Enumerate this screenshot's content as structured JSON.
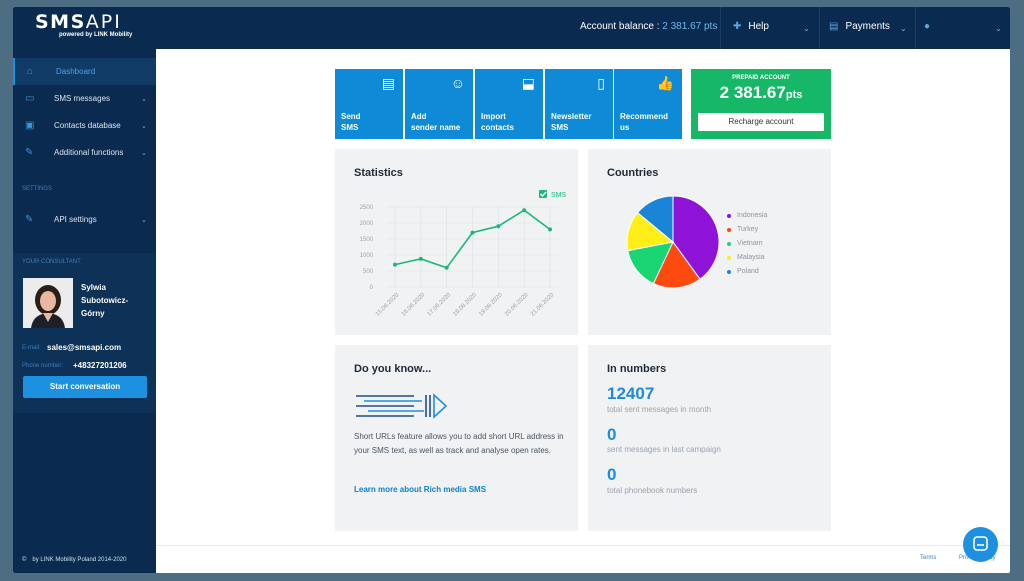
{
  "brand": {
    "logo_main": "SMS",
    "logo_api": "API",
    "logo_sub": "powered by LINK Mobility"
  },
  "topbar": {
    "balance_label": "Account balance : ",
    "balance_value": "2 381.67 pts",
    "help": "Help",
    "payments": "Payments"
  },
  "sidebar": {
    "items": [
      {
        "label": "Dashboard",
        "icon": "home-icon"
      },
      {
        "label": "SMS messages",
        "icon": "message-icon"
      },
      {
        "label": "Contacts database",
        "icon": "contacts-icon"
      },
      {
        "label": "Additional functions",
        "icon": "wrench-icon"
      }
    ],
    "settings_title": "SETTINGS",
    "settings_items": [
      {
        "label": "API settings",
        "icon": "wrench-icon"
      }
    ],
    "consultant_title": "YOUR CONSULTANT",
    "consultant_name_1": "Sylwia",
    "consultant_name_2": "Subotowicz-",
    "consultant_name_3": "Górny",
    "email_label": "E-mail:",
    "email": "sales@smsapi.com",
    "phone_label": "Phone number:",
    "phone": "+48327201206",
    "start_button": "Start conversation",
    "copyright": "by LINK Mobility Poland 2014-2020"
  },
  "tiles": [
    {
      "line1": "Send",
      "line2": "SMS",
      "icon": "chat-bubble-icon"
    },
    {
      "line1": "Add",
      "line2": "sender name",
      "icon": "add-user-icon"
    },
    {
      "line1": "Import",
      "line2": "contacts",
      "icon": "inbox-icon"
    },
    {
      "line1": "Newsletter",
      "line2": "SMS",
      "icon": "phone-icon"
    },
    {
      "line1": "Recommend",
      "line2": "us",
      "icon": "thumbs-up-icon"
    }
  ],
  "prepaid": {
    "title": "PREPAID ACCOUNT",
    "amount": "2 381.67",
    "unit": "pts",
    "button": "Recharge account"
  },
  "statistics": {
    "title": "Statistics",
    "legend": "SMS"
  },
  "countries": {
    "title": "Countries"
  },
  "do_you_know": {
    "title": "Do you know...",
    "text": "Short URLs feature allows you to add short URL address in your SMS text, as well as track and analyse open rates.",
    "link": "Learn more about Rich media SMS"
  },
  "in_numbers": {
    "title": "In numbers",
    "items": [
      {
        "value": "12407",
        "label": "total sent messages in month"
      },
      {
        "value": "0",
        "label": "sent messages in last campaign"
      },
      {
        "value": "0",
        "label": "total phonebook numbers"
      }
    ]
  },
  "footer": {
    "terms": "Terms",
    "privacy": "Privacy policy"
  },
  "colors": {
    "accent": "#1e90e0",
    "navy": "#0a2a4f",
    "green": "#16b868"
  },
  "chart_data": [
    {
      "type": "line",
      "title": "Statistics",
      "x": [
        "15.06.2020",
        "16.06.2020",
        "17.06.2020",
        "18.06.2020",
        "19.06.2020",
        "20.06.2020",
        "21.06.2020"
      ],
      "series": [
        {
          "name": "SMS",
          "values": [
            700,
            880,
            600,
            1700,
            1900,
            2400,
            1800
          ]
        }
      ],
      "y_ticks": [
        0,
        500,
        1000,
        1500,
        2000,
        2500
      ],
      "ylim": [
        0,
        2500
      ],
      "grid": true,
      "legend": "top-right",
      "color": "#1bb87a"
    },
    {
      "type": "pie",
      "title": "Countries",
      "categories": [
        "Indonesia",
        "Turkey",
        "Vietnam",
        "Malaysia",
        "Poland"
      ],
      "values": [
        40,
        17,
        15,
        14,
        14
      ],
      "colors": [
        "#8e13d6",
        "#ff4a0f",
        "#19d673",
        "#ffee17",
        "#1a85d6"
      ],
      "legend": "right"
    }
  ]
}
